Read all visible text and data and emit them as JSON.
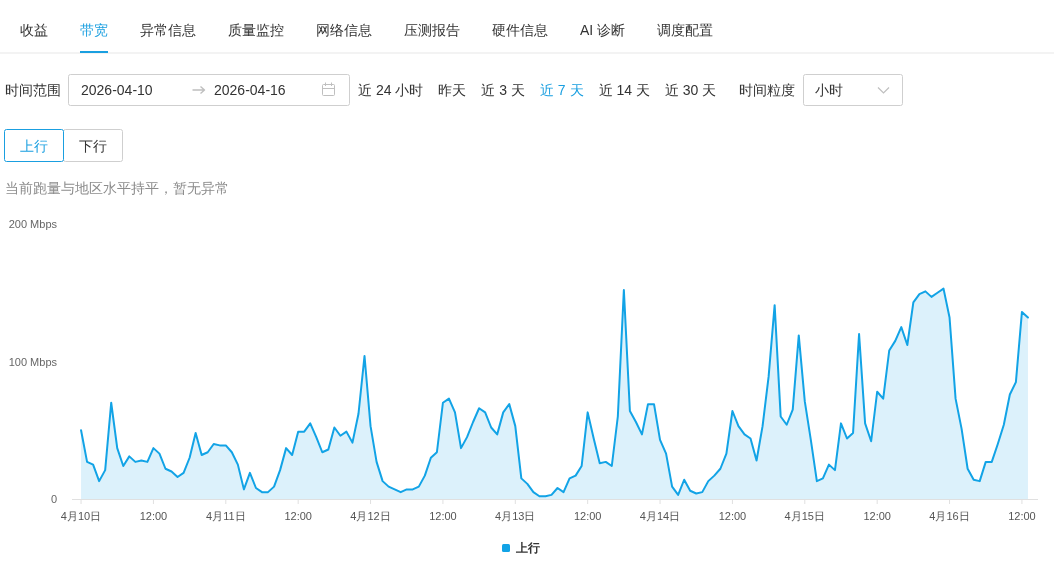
{
  "chart_data": {
    "type": "area",
    "subtitle": "当前跑量与地区水平持平，暂无异常",
    "annotations": [
      "收益",
      "带宽",
      "异常信息",
      "质量监控",
      "网络信息",
      "压测报告",
      "硬件信息",
      "AI 诊断",
      "调度配置",
      "时间范围",
      "2026-04-10",
      "2026-04-16",
      "近 24 小时",
      "昨天",
      "近 3 天",
      "近 7 天",
      "近 14 天",
      "近 30 天",
      "时间粒度",
      "小时",
      "上行",
      "下行"
    ],
    "x": [
      "2026-04-10T00:00",
      "2026-04-10T01:00",
      "2026-04-10T02:00",
      "2026-04-10T03:00",
      "2026-04-10T04:00",
      "2026-04-10T05:00",
      "2026-04-10T06:00",
      "2026-04-10T07:00",
      "2026-04-10T08:00",
      "2026-04-10T09:00",
      "2026-04-10T10:00",
      "2026-04-10T11:00",
      "2026-04-10T12:00",
      "2026-04-10T13:00",
      "2026-04-10T14:00",
      "2026-04-10T15:00",
      "2026-04-10T16:00",
      "2026-04-10T17:00",
      "2026-04-10T18:00",
      "2026-04-10T19:00",
      "2026-04-10T20:00",
      "2026-04-10T21:00",
      "2026-04-10T22:00",
      "2026-04-10T23:00",
      "2026-04-11T00:00",
      "2026-04-11T01:00",
      "2026-04-11T02:00",
      "2026-04-11T03:00",
      "2026-04-11T04:00",
      "2026-04-11T05:00",
      "2026-04-11T06:00",
      "2026-04-11T07:00",
      "2026-04-11T08:00",
      "2026-04-11T09:00",
      "2026-04-11T10:00",
      "2026-04-11T11:00",
      "2026-04-11T12:00",
      "2026-04-11T13:00",
      "2026-04-11T14:00",
      "2026-04-11T15:00",
      "2026-04-11T16:00",
      "2026-04-11T17:00",
      "2026-04-11T18:00",
      "2026-04-11T19:00",
      "2026-04-11T20:00",
      "2026-04-11T21:00",
      "2026-04-11T22:00",
      "2026-04-11T23:00",
      "2026-04-12T00:00",
      "2026-04-12T01:00",
      "2026-04-12T02:00",
      "2026-04-12T03:00",
      "2026-04-12T04:00",
      "2026-04-12T05:00",
      "2026-04-12T06:00",
      "2026-04-12T07:00",
      "2026-04-12T08:00",
      "2026-04-12T09:00",
      "2026-04-12T10:00",
      "2026-04-12T11:00",
      "2026-04-12T12:00",
      "2026-04-12T13:00",
      "2026-04-12T14:00",
      "2026-04-12T15:00",
      "2026-04-12T16:00",
      "2026-04-12T17:00",
      "2026-04-12T18:00",
      "2026-04-12T19:00",
      "2026-04-12T20:00",
      "2026-04-12T21:00",
      "2026-04-12T22:00",
      "2026-04-12T23:00",
      "2026-04-13T00:00",
      "2026-04-13T01:00",
      "2026-04-13T02:00",
      "2026-04-13T03:00",
      "2026-04-13T04:00",
      "2026-04-13T05:00",
      "2026-04-13T06:00",
      "2026-04-13T07:00",
      "2026-04-13T08:00",
      "2026-04-13T09:00",
      "2026-04-13T10:00",
      "2026-04-13T11:00",
      "2026-04-13T12:00",
      "2026-04-13T13:00",
      "2026-04-13T14:00",
      "2026-04-13T15:00",
      "2026-04-13T16:00",
      "2026-04-13T17:00",
      "2026-04-13T18:00",
      "2026-04-13T19:00",
      "2026-04-13T20:00",
      "2026-04-13T21:00",
      "2026-04-13T22:00",
      "2026-04-13T23:00",
      "2026-04-14T00:00",
      "2026-04-14T01:00",
      "2026-04-14T02:00",
      "2026-04-14T03:00",
      "2026-04-14T04:00",
      "2026-04-14T05:00",
      "2026-04-14T06:00",
      "2026-04-14T07:00",
      "2026-04-14T08:00",
      "2026-04-14T09:00",
      "2026-04-14T10:00",
      "2026-04-14T11:00",
      "2026-04-14T12:00",
      "2026-04-14T13:00",
      "2026-04-14T14:00",
      "2026-04-14T15:00",
      "2026-04-14T16:00",
      "2026-04-14T17:00",
      "2026-04-14T18:00",
      "2026-04-14T19:00",
      "2026-04-14T20:00",
      "2026-04-14T21:00",
      "2026-04-14T22:00",
      "2026-04-14T23:00",
      "2026-04-15T00:00",
      "2026-04-15T01:00",
      "2026-04-15T02:00",
      "2026-04-15T03:00",
      "2026-04-15T04:00",
      "2026-04-15T05:00",
      "2026-04-15T06:00",
      "2026-04-15T07:00",
      "2026-04-15T08:00",
      "2026-04-15T09:00",
      "2026-04-15T10:00",
      "2026-04-15T11:00",
      "2026-04-15T12:00",
      "2026-04-15T13:00",
      "2026-04-15T14:00",
      "2026-04-15T15:00",
      "2026-04-15T16:00",
      "2026-04-15T17:00",
      "2026-04-15T18:00",
      "2026-04-15T19:00",
      "2026-04-15T20:00",
      "2026-04-15T21:00",
      "2026-04-15T22:00",
      "2026-04-15T23:00",
      "2026-04-16T00:00",
      "2026-04-16T01:00",
      "2026-04-16T02:00",
      "2026-04-16T03:00",
      "2026-04-16T04:00",
      "2026-04-16T05:00",
      "2026-04-16T06:00",
      "2026-04-16T07:00",
      "2026-04-16T08:00",
      "2026-04-16T09:00",
      "2026-04-16T10:00",
      "2026-04-16T11:00",
      "2026-04-16T12:00",
      "2026-04-16T13:00"
    ],
    "series": [
      {
        "name": "上行",
        "color": "#12a3e6",
        "values": [
          50,
          27,
          25,
          13,
          21,
          70,
          37,
          24,
          31,
          27,
          28,
          27,
          37,
          33,
          22,
          20,
          16,
          19,
          30,
          48,
          32,
          34,
          40,
          39,
          39,
          34,
          25,
          7,
          19,
          8,
          5,
          5,
          9,
          21,
          37,
          32,
          49,
          49,
          55,
          45,
          34,
          36,
          52,
          46,
          49,
          41,
          62,
          104,
          53,
          27,
          13,
          9,
          7,
          5,
          7,
          7,
          9,
          17,
          30,
          34,
          70,
          73,
          63,
          37,
          45,
          56,
          66,
          63,
          52,
          47,
          63,
          69,
          53,
          15,
          11,
          5,
          2,
          2,
          3,
          8,
          5,
          15,
          17,
          24,
          63,
          44,
          26,
          27,
          24,
          60,
          152,
          64,
          56,
          47,
          69,
          69,
          43,
          33,
          9,
          3,
          14,
          6,
          4,
          5,
          13,
          17,
          22,
          33,
          64,
          53,
          47,
          44,
          28,
          53,
          89,
          141,
          60,
          54,
          65,
          119,
          71,
          43,
          13,
          15,
          25,
          21,
          55,
          44,
          48,
          120,
          55,
          42,
          78,
          73,
          108,
          115,
          125,
          112,
          143,
          149,
          151,
          147,
          150,
          153,
          132,
          73,
          51,
          22,
          14,
          13,
          27,
          27,
          40,
          54,
          76,
          85,
          136,
          132
        ]
      }
    ],
    "xlim": [
      "2026-04-09T22:30",
      "2026-04-16T14:40"
    ],
    "xticks": [
      {
        "value": "2026-04-10T00:00",
        "label": "4月10日"
      },
      {
        "value": "2026-04-10T12:00",
        "label": "12:00"
      },
      {
        "value": "2026-04-11T00:00",
        "label": "4月11日"
      },
      {
        "value": "2026-04-11T12:00",
        "label": "12:00"
      },
      {
        "value": "2026-04-12T00:00",
        "label": "4月12日"
      },
      {
        "value": "2026-04-12T12:00",
        "label": "12:00"
      },
      {
        "value": "2026-04-13T00:00",
        "label": "4月13日"
      },
      {
        "value": "2026-04-13T12:00",
        "label": "12:00"
      },
      {
        "value": "2026-04-14T00:00",
        "label": "4月14日"
      },
      {
        "value": "2026-04-14T12:00",
        "label": "12:00"
      },
      {
        "value": "2026-04-15T00:00",
        "label": "4月15日"
      },
      {
        "value": "2026-04-15T12:00",
        "label": "12:00"
      },
      {
        "value": "2026-04-16T00:00",
        "label": "4月16日"
      },
      {
        "value": "2026-04-16T12:00",
        "label": "12:00"
      }
    ],
    "ylim": [
      0,
      200
    ],
    "yticks": [
      0,
      {
        "value": 100,
        "label": "100 Mbps"
      },
      {
        "value": 200,
        "label": "200 Mbps"
      }
    ],
    "grid": false,
    "legend": "bottom"
  }
}
